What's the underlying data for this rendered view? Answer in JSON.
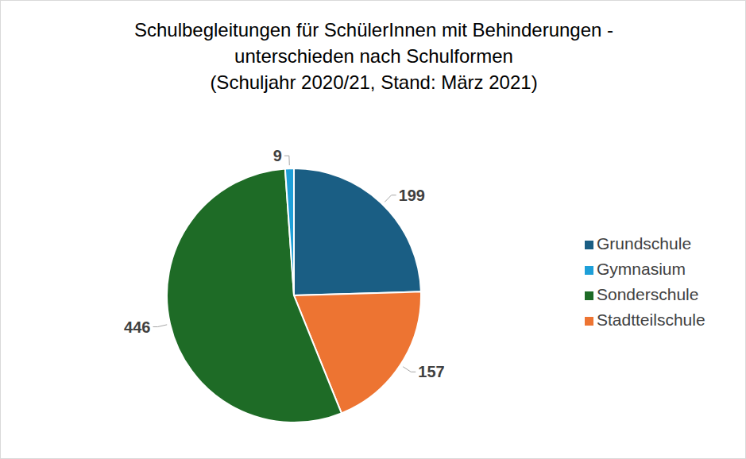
{
  "chart_data": {
    "type": "pie",
    "title": [
      "Schulbegleitungen für SchülerInnen mit Behinderungen -",
      "unterschieden nach Schulformen",
      "(Schuljahr 2020/21, Stand: März 2021)"
    ],
    "categories": [
      "Grundschule",
      "Stadtteilschule",
      "Sonderschule",
      "Gymnasium"
    ],
    "values": [
      199,
      157,
      446,
      9
    ],
    "colors": [
      "#1a5e84",
      "#ed7432",
      "#1e6b26",
      "#1e9fd8"
    ],
    "data_labels": true,
    "legend": "right"
  }
}
